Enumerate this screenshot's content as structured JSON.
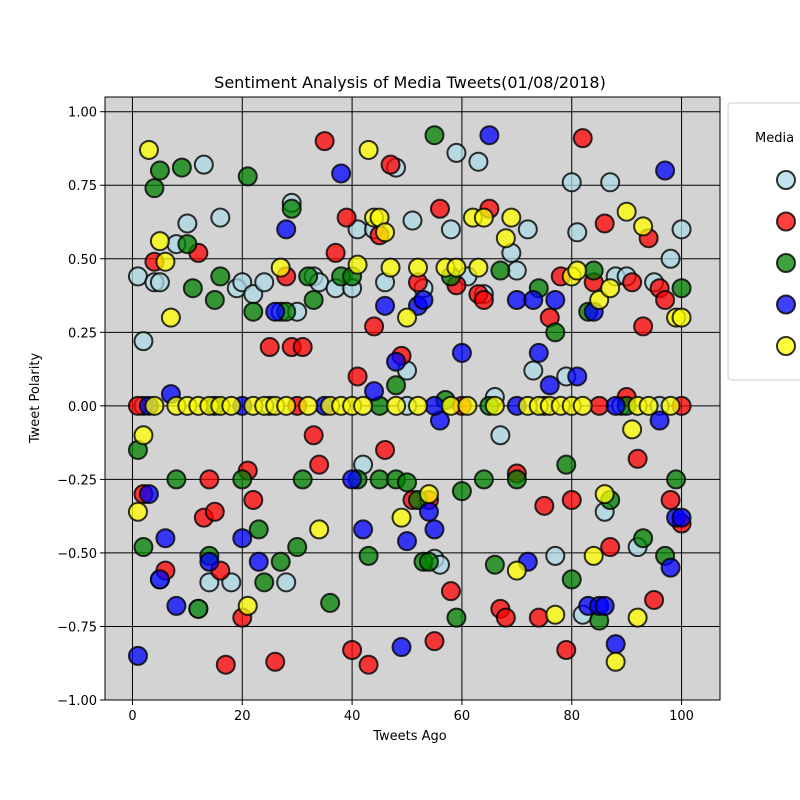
{
  "chart_data": {
    "type": "scatter",
    "title": "Sentiment Analysis of Media Tweets(01/08/2018)",
    "xlabel": "Tweets Ago",
    "ylabel": "Tweet Polarity",
    "xlim": [
      -5,
      107
    ],
    "ylim": [
      -1.0,
      1.05
    ],
    "x_ticks": [
      0,
      20,
      40,
      60,
      80,
      100
    ],
    "y_ticks": [
      -1.0,
      -0.75,
      -0.5,
      -0.25,
      0.0,
      0.25,
      0.5,
      0.75,
      1.0
    ],
    "x_tick_labels": [
      "0",
      "20",
      "40",
      "60",
      "80",
      "100"
    ],
    "y_tick_labels": [
      "−1.00",
      "−0.75",
      "−0.50",
      "−0.25",
      "0.00",
      "0.25",
      "0.50",
      "0.75",
      "1.00"
    ],
    "grid": true,
    "plot_background": "#d3d3d3",
    "legend": {
      "title": "Media",
      "placement": "right, outside plot"
    },
    "series": [
      {
        "color": "#add8e6",
        "points": [
          [
            1,
            0.44
          ],
          [
            2,
            0.22
          ],
          [
            4,
            0.42
          ],
          [
            5,
            0.42
          ],
          [
            5,
            -0.59
          ],
          [
            8,
            0.55
          ],
          [
            10,
            0.62
          ],
          [
            12,
            -0.69
          ],
          [
            13,
            0.82
          ],
          [
            14,
            -0.6
          ],
          [
            16,
            0.64
          ],
          [
            19,
            0.4
          ],
          [
            18,
            -0.6
          ],
          [
            20,
            0.42
          ],
          [
            22,
            0.38
          ],
          [
            24,
            0.42
          ],
          [
            27,
            0.32
          ],
          [
            28,
            -0.6
          ],
          [
            29,
            0.69
          ],
          [
            30,
            0.32
          ],
          [
            33,
            0.44
          ],
          [
            34,
            0.42
          ],
          [
            37,
            0.4
          ],
          [
            40,
            0.4
          ],
          [
            41,
            0.6
          ],
          [
            42,
            -0.2
          ],
          [
            44,
            0.6
          ],
          [
            46,
            0.42
          ],
          [
            48,
            0.81
          ],
          [
            50,
            0.12
          ],
          [
            51,
            0.63
          ],
          [
            53,
            0.4
          ],
          [
            55,
            -0.52
          ],
          [
            56,
            -0.54
          ],
          [
            58,
            0.6
          ],
          [
            59,
            0.86
          ],
          [
            61,
            0.44
          ],
          [
            63,
            0.83
          ],
          [
            64,
            0.38
          ],
          [
            66,
            0.03
          ],
          [
            67,
            -0.1
          ],
          [
            69,
            0.52
          ],
          [
            70,
            0.46
          ],
          [
            72,
            0.6
          ],
          [
            73,
            0.12
          ],
          [
            77,
            -0.51
          ],
          [
            79,
            0.1
          ],
          [
            80,
            0.76
          ],
          [
            81,
            0.59
          ],
          [
            82,
            -0.71
          ],
          [
            86,
            -0.36
          ],
          [
            87,
            0.76
          ],
          [
            88,
            0.44
          ],
          [
            89,
            0.0
          ],
          [
            90,
            0.44
          ],
          [
            92,
            -0.48
          ],
          [
            95,
            0.42
          ],
          [
            98,
            0.5
          ],
          [
            100,
            0.6
          ],
          [
            2,
            0.0
          ],
          [
            25,
            0.0
          ],
          [
            50,
            0.0
          ],
          [
            75,
            0.0
          ],
          [
            96,
            0.0
          ]
        ]
      },
      {
        "color": "#ff0000",
        "points": [
          [
            1,
            0.0
          ],
          [
            2,
            -0.3
          ],
          [
            4,
            0.49
          ],
          [
            6,
            -0.56
          ],
          [
            12,
            0.52
          ],
          [
            13,
            -0.38
          ],
          [
            14,
            -0.25
          ],
          [
            15,
            -0.36
          ],
          [
            16,
            -0.56
          ],
          [
            17,
            -0.88
          ],
          [
            20,
            -0.72
          ],
          [
            21,
            -0.22
          ],
          [
            22,
            -0.32
          ],
          [
            25,
            0.2
          ],
          [
            26,
            -0.87
          ],
          [
            28,
            0.44
          ],
          [
            29,
            0.2
          ],
          [
            31,
            0.2
          ],
          [
            33,
            -0.1
          ],
          [
            34,
            -0.2
          ],
          [
            35,
            0.9
          ],
          [
            37,
            0.52
          ],
          [
            39,
            0.64
          ],
          [
            40,
            -0.83
          ],
          [
            41,
            0.1
          ],
          [
            43,
            -0.88
          ],
          [
            44,
            0.27
          ],
          [
            45,
            0.58
          ],
          [
            46,
            -0.15
          ],
          [
            47,
            0.82
          ],
          [
            49,
            0.17
          ],
          [
            51,
            -0.32
          ],
          [
            52,
            0.42
          ],
          [
            54,
            -0.32
          ],
          [
            55,
            -0.8
          ],
          [
            56,
            0.67
          ],
          [
            58,
            -0.63
          ],
          [
            59,
            0.41
          ],
          [
            63,
            0.38
          ],
          [
            64,
            0.36
          ],
          [
            65,
            0.67
          ],
          [
            67,
            -0.69
          ],
          [
            68,
            -0.72
          ],
          [
            70,
            -0.23
          ],
          [
            74,
            -0.72
          ],
          [
            75,
            -0.34
          ],
          [
            76,
            0.3
          ],
          [
            78,
            0.44
          ],
          [
            79,
            -0.83
          ],
          [
            80,
            -0.32
          ],
          [
            82,
            0.91
          ],
          [
            84,
            0.42
          ],
          [
            86,
            0.62
          ],
          [
            87,
            -0.48
          ],
          [
            90,
            0.03
          ],
          [
            91,
            0.42
          ],
          [
            92,
            -0.18
          ],
          [
            93,
            0.27
          ],
          [
            94,
            0.57
          ],
          [
            95,
            -0.66
          ],
          [
            96,
            0.4
          ],
          [
            97,
            0.36
          ],
          [
            98,
            -0.32
          ],
          [
            100,
            -0.4
          ],
          [
            30,
            0.0
          ],
          [
            60,
            0.0
          ],
          [
            85,
            0.0
          ],
          [
            100,
            0.0
          ]
        ]
      },
      {
        "color": "#008000",
        "points": [
          [
            1,
            -0.15
          ],
          [
            2,
            -0.48
          ],
          [
            4,
            0.74
          ],
          [
            5,
            0.8
          ],
          [
            8,
            -0.25
          ],
          [
            9,
            0.81
          ],
          [
            10,
            0.55
          ],
          [
            11,
            0.4
          ],
          [
            12,
            -0.69
          ],
          [
            14,
            -0.51
          ],
          [
            15,
            0.36
          ],
          [
            16,
            0.44
          ],
          [
            20,
            -0.25
          ],
          [
            21,
            0.78
          ],
          [
            22,
            0.32
          ],
          [
            23,
            -0.42
          ],
          [
            24,
            -0.6
          ],
          [
            27,
            -0.53
          ],
          [
            28,
            0.32
          ],
          [
            29,
            0.67
          ],
          [
            30,
            -0.48
          ],
          [
            31,
            -0.25
          ],
          [
            32,
            0.44
          ],
          [
            33,
            0.36
          ],
          [
            36,
            -0.67
          ],
          [
            38,
            0.44
          ],
          [
            40,
            0.44
          ],
          [
            41,
            -0.25
          ],
          [
            43,
            -0.51
          ],
          [
            45,
            -0.25
          ],
          [
            48,
            0.07
          ],
          [
            48,
            -0.25
          ],
          [
            50,
            -0.26
          ],
          [
            52,
            -0.32
          ],
          [
            53,
            -0.53
          ],
          [
            54,
            -0.53
          ],
          [
            55,
            0.92
          ],
          [
            57,
            0.02
          ],
          [
            58,
            0.44
          ],
          [
            59,
            -0.72
          ],
          [
            60,
            -0.29
          ],
          [
            64,
            -0.25
          ],
          [
            66,
            -0.54
          ],
          [
            67,
            0.46
          ],
          [
            70,
            -0.25
          ],
          [
            74,
            0.4
          ],
          [
            77,
            0.25
          ],
          [
            79,
            -0.2
          ],
          [
            80,
            -0.59
          ],
          [
            83,
            0.32
          ],
          [
            84,
            0.46
          ],
          [
            85,
            -0.73
          ],
          [
            87,
            -0.32
          ],
          [
            93,
            -0.45
          ],
          [
            97,
            -0.51
          ],
          [
            99,
            -0.25
          ],
          [
            100,
            0.4
          ],
          [
            15,
            0.0
          ],
          [
            45,
            0.0
          ],
          [
            65,
            0.0
          ],
          [
            90,
            0.0
          ]
        ]
      },
      {
        "color": "#0000ff",
        "points": [
          [
            1,
            -0.85
          ],
          [
            3,
            -0.3
          ],
          [
            5,
            -0.59
          ],
          [
            6,
            -0.45
          ],
          [
            7,
            0.04
          ],
          [
            8,
            -0.68
          ],
          [
            14,
            -0.53
          ],
          [
            20,
            -0.45
          ],
          [
            23,
            -0.53
          ],
          [
            26,
            0.32
          ],
          [
            28,
            0.6
          ],
          [
            38,
            0.79
          ],
          [
            40,
            -0.25
          ],
          [
            42,
            -0.42
          ],
          [
            44,
            0.05
          ],
          [
            46,
            0.34
          ],
          [
            48,
            0.15
          ],
          [
            49,
            -0.82
          ],
          [
            50,
            -0.46
          ],
          [
            52,
            0.34
          ],
          [
            53,
            0.36
          ],
          [
            54,
            -0.36
          ],
          [
            55,
            -0.42
          ],
          [
            56,
            -0.05
          ],
          [
            60,
            0.18
          ],
          [
            65,
            0.92
          ],
          [
            70,
            0.36
          ],
          [
            72,
            -0.53
          ],
          [
            73,
            0.36
          ],
          [
            74,
            0.18
          ],
          [
            76,
            0.07
          ],
          [
            77,
            0.36
          ],
          [
            81,
            0.1
          ],
          [
            83,
            -0.68
          ],
          [
            84,
            0.32
          ],
          [
            85,
            -0.68
          ],
          [
            86,
            -0.68
          ],
          [
            88,
            -0.81
          ],
          [
            96,
            -0.05
          ],
          [
            97,
            0.8
          ],
          [
            98,
            -0.55
          ],
          [
            99,
            -0.38
          ],
          [
            100,
            -0.38
          ],
          [
            3,
            0.0
          ],
          [
            20,
            0.0
          ],
          [
            35,
            0.0
          ],
          [
            55,
            0.0
          ],
          [
            70,
            0.0
          ],
          [
            88,
            0.0
          ]
        ]
      },
      {
        "color": "#ffff00",
        "points": [
          [
            1,
            -0.36
          ],
          [
            2,
            -0.1
          ],
          [
            3,
            0.87
          ],
          [
            4,
            0.0
          ],
          [
            5,
            0.56
          ],
          [
            6,
            0.49
          ],
          [
            7,
            0.3
          ],
          [
            21,
            -0.68
          ],
          [
            27,
            0.47
          ],
          [
            34,
            -0.42
          ],
          [
            41,
            0.48
          ],
          [
            43,
            0.87
          ],
          [
            44,
            0.64
          ],
          [
            45,
            0.64
          ],
          [
            46,
            0.59
          ],
          [
            47,
            0.47
          ],
          [
            49,
            -0.38
          ],
          [
            50,
            0.3
          ],
          [
            52,
            0.47
          ],
          [
            54,
            -0.3
          ],
          [
            57,
            0.47
          ],
          [
            59,
            0.47
          ],
          [
            62,
            0.64
          ],
          [
            63,
            0.47
          ],
          [
            64,
            0.64
          ],
          [
            68,
            0.57
          ],
          [
            69,
            0.64
          ],
          [
            70,
            -0.56
          ],
          [
            77,
            -0.71
          ],
          [
            80,
            0.44
          ],
          [
            81,
            0.46
          ],
          [
            84,
            -0.51
          ],
          [
            85,
            0.36
          ],
          [
            86,
            -0.3
          ],
          [
            87,
            0.4
          ],
          [
            88,
            -0.87
          ],
          [
            90,
            0.66
          ],
          [
            91,
            -0.08
          ],
          [
            92,
            -0.72
          ],
          [
            93,
            0.61
          ],
          [
            99,
            0.3
          ],
          [
            100,
            0.3
          ],
          [
            8,
            0.0
          ],
          [
            10,
            0.0
          ],
          [
            12,
            0.0
          ],
          [
            14,
            0.0
          ],
          [
            16,
            0.0
          ],
          [
            18,
            0.0
          ],
          [
            22,
            0.0
          ],
          [
            24,
            0.0
          ],
          [
            26,
            0.0
          ],
          [
            28,
            0.0
          ],
          [
            32,
            0.0
          ],
          [
            36,
            0.0
          ],
          [
            38,
            0.0
          ],
          [
            40,
            0.0
          ],
          [
            42,
            0.0
          ],
          [
            48,
            0.0
          ],
          [
            52,
            0.0
          ],
          [
            58,
            0.0
          ],
          [
            61,
            0.0
          ],
          [
            66,
            0.0
          ],
          [
            72,
            0.0
          ],
          [
            74,
            0.0
          ],
          [
            76,
            0.0
          ],
          [
            78,
            0.0
          ],
          [
            80,
            0.0
          ],
          [
            82,
            0.0
          ],
          [
            92,
            0.0
          ],
          [
            94,
            0.0
          ],
          [
            98,
            0.0
          ]
        ]
      }
    ]
  }
}
